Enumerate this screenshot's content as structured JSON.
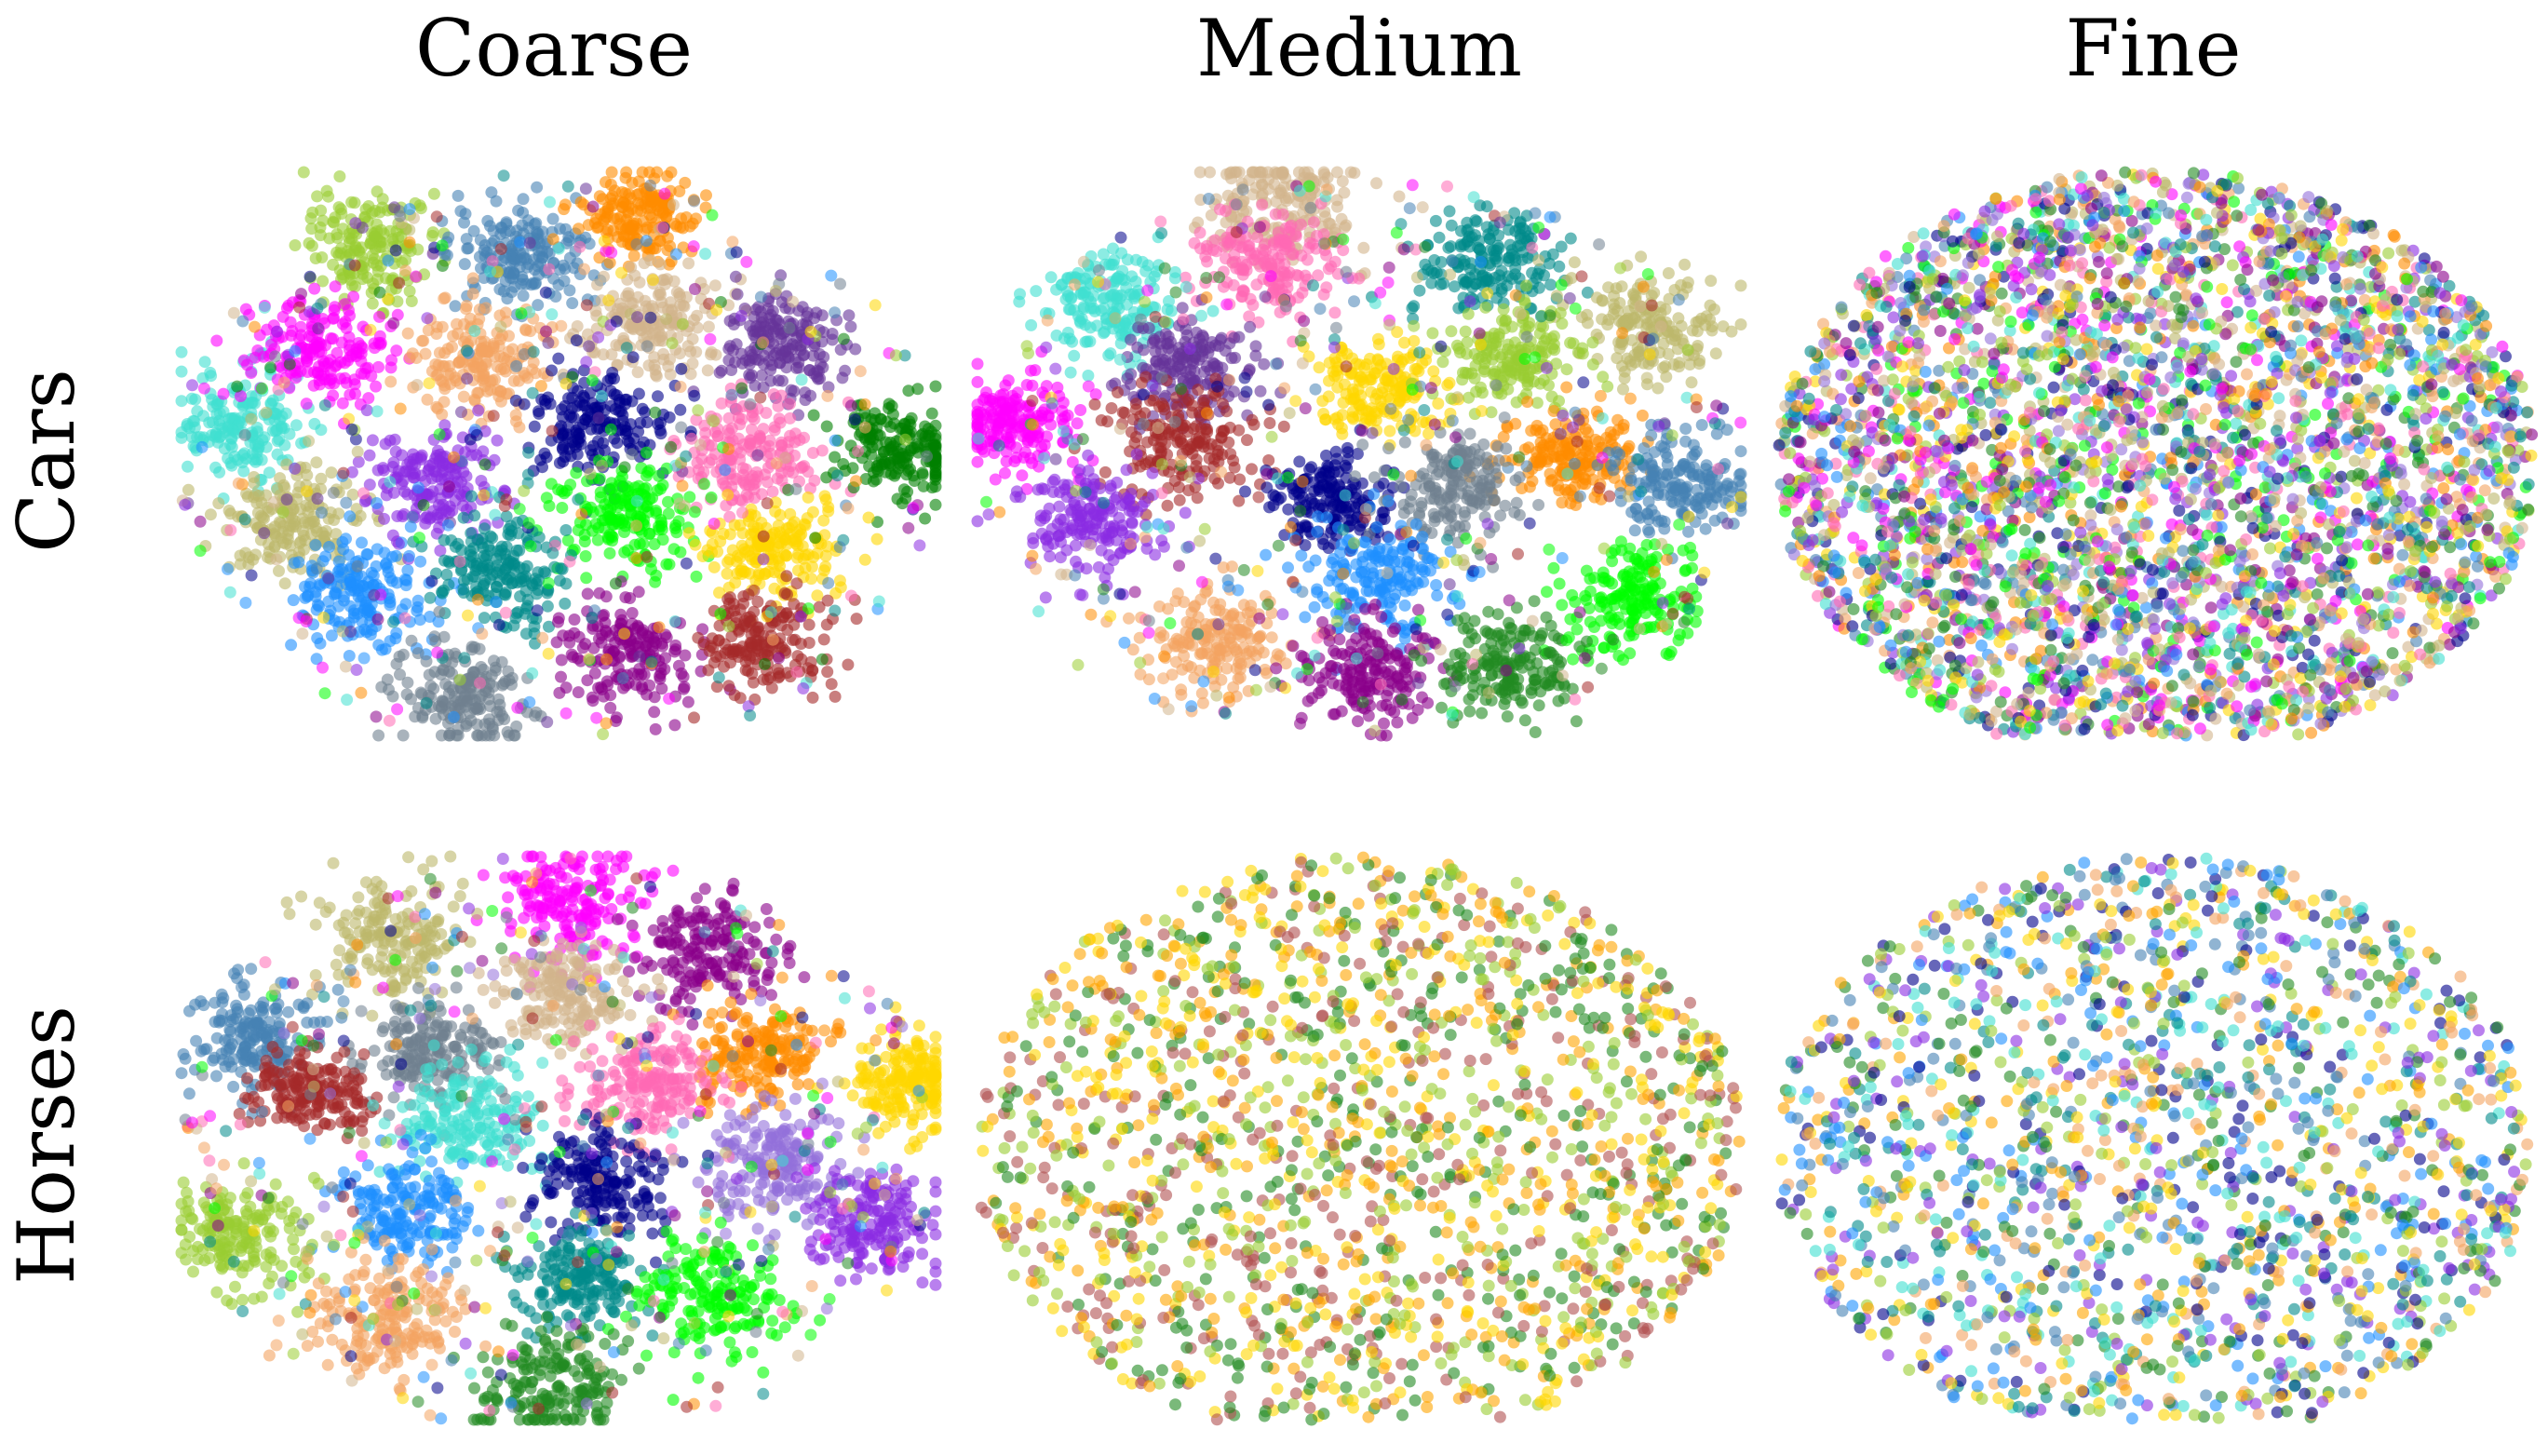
{
  "column_titles": [
    "Coarse",
    "Medium",
    "Fine"
  ],
  "row_labels": [
    "Cars",
    "Horses"
  ],
  "palette": {
    "turquoise": "#40E0D0",
    "yellowgreen": "#9ACD32",
    "steelblue": "#4682B4",
    "darkorange": "#FF8C00",
    "magenta": "#FF00FF",
    "sandybrown": "#F4A460",
    "tan": "#D2B48C",
    "rebeccapurple": "#663399",
    "darkkhaki": "#BDB76B",
    "blueviolet": "#8A2BE2",
    "navy": "#00008B",
    "hotpink": "#FF69B4",
    "green": "#008000",
    "lime": "#00FF00",
    "gold": "#FFD700",
    "dodgerblue": "#1E90FF",
    "teal": "#008B8B",
    "purple": "#8B008B",
    "brown": "#A52A2A",
    "slategray": "#708090",
    "forestgreen": "#228B22",
    "orange": "#FFA500",
    "rosybrown": "#B05050",
    "mediumpurple": "#9370DB"
  },
  "chart_data": [
    {
      "type": "scatter",
      "row": "Cars",
      "column": "Coarse",
      "layout": "clustered",
      "point_count": 4000,
      "clusters": [
        {
          "color": "turquoise",
          "center": [
            0.08,
            0.45
          ],
          "spread": 0.045
        },
        {
          "color": "yellowgreen",
          "center": [
            0.25,
            0.13
          ],
          "spread": 0.045
        },
        {
          "color": "steelblue",
          "center": [
            0.45,
            0.15
          ],
          "spread": 0.045
        },
        {
          "color": "darkorange",
          "center": [
            0.61,
            0.08
          ],
          "spread": 0.04
        },
        {
          "color": "magenta",
          "center": [
            0.19,
            0.32
          ],
          "spread": 0.045
        },
        {
          "color": "sandybrown",
          "center": [
            0.4,
            0.33
          ],
          "spread": 0.045
        },
        {
          "color": "tan",
          "center": [
            0.62,
            0.27
          ],
          "spread": 0.05
        },
        {
          "color": "rebeccapurple",
          "center": [
            0.8,
            0.31
          ],
          "spread": 0.045
        },
        {
          "color": "darkkhaki",
          "center": [
            0.15,
            0.62
          ],
          "spread": 0.045
        },
        {
          "color": "blueviolet",
          "center": [
            0.33,
            0.55
          ],
          "spread": 0.045
        },
        {
          "color": "navy",
          "center": [
            0.55,
            0.45
          ],
          "spread": 0.045
        },
        {
          "color": "hotpink",
          "center": [
            0.75,
            0.5
          ],
          "spread": 0.045
        },
        {
          "color": "green",
          "center": [
            0.95,
            0.49
          ],
          "spread": 0.04
        },
        {
          "color": "lime",
          "center": [
            0.59,
            0.61
          ],
          "spread": 0.045
        },
        {
          "color": "gold",
          "center": [
            0.79,
            0.67
          ],
          "spread": 0.045
        },
        {
          "color": "dodgerblue",
          "center": [
            0.24,
            0.75
          ],
          "spread": 0.045
        },
        {
          "color": "teal",
          "center": [
            0.42,
            0.71
          ],
          "spread": 0.045
        },
        {
          "color": "purple",
          "center": [
            0.59,
            0.85
          ],
          "spread": 0.045
        },
        {
          "color": "brown",
          "center": [
            0.77,
            0.83
          ],
          "spread": 0.045
        },
        {
          "color": "slategray",
          "center": [
            0.38,
            0.93
          ],
          "spread": 0.045
        }
      ]
    },
    {
      "type": "scatter",
      "row": "Cars",
      "column": "Medium",
      "layout": "clustered",
      "point_count": 4000,
      "clusters": [
        {
          "color": "tan",
          "center": [
            0.4,
            0.05
          ],
          "spread": 0.05
        },
        {
          "color": "hotpink",
          "center": [
            0.38,
            0.16
          ],
          "spread": 0.045
        },
        {
          "color": "teal",
          "center": [
            0.67,
            0.16
          ],
          "spread": 0.05
        },
        {
          "color": "turquoise",
          "center": [
            0.18,
            0.24
          ],
          "spread": 0.045
        },
        {
          "color": "darkkhaki",
          "center": [
            0.88,
            0.27
          ],
          "spread": 0.045
        },
        {
          "color": "rebeccapurple",
          "center": [
            0.28,
            0.35
          ],
          "spread": 0.045
        },
        {
          "color": "gold",
          "center": [
            0.53,
            0.38
          ],
          "spread": 0.04
        },
        {
          "color": "yellowgreen",
          "center": [
            0.7,
            0.33
          ],
          "spread": 0.04
        },
        {
          "color": "magenta",
          "center": [
            0.05,
            0.45
          ],
          "spread": 0.04
        },
        {
          "color": "brown",
          "center": [
            0.27,
            0.48
          ],
          "spread": 0.05
        },
        {
          "color": "darkorange",
          "center": [
            0.78,
            0.51
          ],
          "spread": 0.04
        },
        {
          "color": "steelblue",
          "center": [
            0.92,
            0.55
          ],
          "spread": 0.045
        },
        {
          "color": "navy",
          "center": [
            0.46,
            0.58
          ],
          "spread": 0.04
        },
        {
          "color": "slategray",
          "center": [
            0.62,
            0.56
          ],
          "spread": 0.045
        },
        {
          "color": "blueviolet",
          "center": [
            0.15,
            0.62
          ],
          "spread": 0.045
        },
        {
          "color": "dodgerblue",
          "center": [
            0.52,
            0.72
          ],
          "spread": 0.05
        },
        {
          "color": "lime",
          "center": [
            0.86,
            0.76
          ],
          "spread": 0.045
        },
        {
          "color": "sandybrown",
          "center": [
            0.32,
            0.83
          ],
          "spread": 0.045
        },
        {
          "color": "purple",
          "center": [
            0.51,
            0.89
          ],
          "spread": 0.045
        },
        {
          "color": "forestgreen",
          "center": [
            0.7,
            0.87
          ],
          "spread": 0.045
        }
      ]
    },
    {
      "type": "scatter",
      "row": "Cars",
      "column": "Fine",
      "layout": "mixed",
      "point_count": 4000,
      "colors": [
        "lime",
        "navy",
        "magenta",
        "gold",
        "turquoise",
        "steelblue",
        "hotpink",
        "yellowgreen",
        "tan",
        "blueviolet",
        "darkorange",
        "teal",
        "dodgerblue",
        "purple",
        "darkkhaki",
        "sandybrown",
        "forestgreen",
        "mediumpurple"
      ]
    },
    {
      "type": "scatter",
      "row": "Horses",
      "column": "Coarse",
      "layout": "clustered",
      "point_count": 4000,
      "clusters": [
        {
          "color": "magenta",
          "center": [
            0.52,
            0.08
          ],
          "spread": 0.05
        },
        {
          "color": "darkkhaki",
          "center": [
            0.28,
            0.14
          ],
          "spread": 0.045
        },
        {
          "color": "purple",
          "center": [
            0.7,
            0.17
          ],
          "spread": 0.05
        },
        {
          "color": "tan",
          "center": [
            0.5,
            0.24
          ],
          "spread": 0.045
        },
        {
          "color": "steelblue",
          "center": [
            0.1,
            0.32
          ],
          "spread": 0.045
        },
        {
          "color": "slategray",
          "center": [
            0.33,
            0.35
          ],
          "spread": 0.045
        },
        {
          "color": "darkorange",
          "center": [
            0.76,
            0.35
          ],
          "spread": 0.045
        },
        {
          "color": "gold",
          "center": [
            0.96,
            0.4
          ],
          "spread": 0.04
        },
        {
          "color": "brown",
          "center": [
            0.17,
            0.41
          ],
          "spread": 0.04
        },
        {
          "color": "hotpink",
          "center": [
            0.62,
            0.41
          ],
          "spread": 0.045
        },
        {
          "color": "turquoise",
          "center": [
            0.38,
            0.47
          ],
          "spread": 0.05
        },
        {
          "color": "mediumpurple",
          "center": [
            0.78,
            0.55
          ],
          "spread": 0.045
        },
        {
          "color": "navy",
          "center": [
            0.55,
            0.58
          ],
          "spread": 0.045
        },
        {
          "color": "blueviolet",
          "center": [
            0.92,
            0.65
          ],
          "spread": 0.045
        },
        {
          "color": "dodgerblue",
          "center": [
            0.3,
            0.63
          ],
          "spread": 0.045
        },
        {
          "color": "yellowgreen",
          "center": [
            0.08,
            0.67
          ],
          "spread": 0.045
        },
        {
          "color": "teal",
          "center": [
            0.53,
            0.75
          ],
          "spread": 0.045
        },
        {
          "color": "lime",
          "center": [
            0.7,
            0.78
          ],
          "spread": 0.05
        },
        {
          "color": "sandybrown",
          "center": [
            0.27,
            0.82
          ],
          "spread": 0.05
        },
        {
          "color": "forestgreen",
          "center": [
            0.49,
            0.94
          ],
          "spread": 0.05
        }
      ]
    },
    {
      "type": "scatter",
      "row": "Horses",
      "column": "Medium",
      "layout": "mixed",
      "point_count": 1800,
      "colors": [
        "rosybrown",
        "forestgreen",
        "gold",
        "orange",
        "yellowgreen"
      ]
    },
    {
      "type": "scatter",
      "row": "Horses",
      "column": "Fine",
      "layout": "mixed",
      "point_count": 1800,
      "colors": [
        "navy",
        "turquoise",
        "dodgerblue",
        "forestgreen",
        "gold",
        "orange",
        "yellowgreen",
        "steelblue",
        "blueviolet",
        "teal",
        "sandybrown"
      ]
    }
  ]
}
